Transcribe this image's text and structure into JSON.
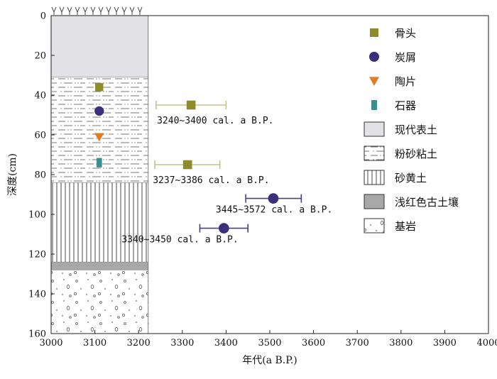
{
  "chart_data": {
    "type": "scatter",
    "xlabel": "年代(a B.P.)",
    "ylabel": "深度(cm)",
    "xlim": [
      3000,
      4000
    ],
    "ylim": [
      0,
      160
    ],
    "y_inverted": true,
    "x_ticks": [
      "3000",
      "3100",
      "3200",
      "3300",
      "3400",
      "3500",
      "3600",
      "3700",
      "3800",
      "3900",
      "4000"
    ],
    "y_ticks": [
      "0",
      "20",
      "40",
      "60",
      "80",
      "100",
      "120",
      "140",
      "160"
    ],
    "grid": false,
    "legend_position": "right",
    "colors": {
      "bone": "#8c8c2a",
      "charcoal": "#3a2f7a",
      "pottery": "#e07b26",
      "stone_tool": "#3a8f8f",
      "errorbar_bone": "#c2c48a",
      "errorbar_charcoal": "#4a3f8a"
    },
    "series": [
      {
        "name": "骨头",
        "marker": "square",
        "points": [
          {
            "x": 3320,
            "y": 45,
            "x_err": [
              3240,
              3400
            ],
            "label": "3240~3400 cal. a B.P."
          },
          {
            "x": 3312,
            "y": 75,
            "x_err": [
              3237,
              3386
            ],
            "label": "3237~3386 cal. a B.P."
          },
          {
            "x": 3110,
            "y": 36
          }
        ]
      },
      {
        "name": "炭屑",
        "marker": "circle",
        "points": [
          {
            "x": 3508,
            "y": 92,
            "x_err": [
              3445,
              3572
            ],
            "label": "3445~3572 cal. a B.P."
          },
          {
            "x": 3395,
            "y": 107,
            "x_err": [
              3340,
              3450
            ],
            "label": "3340~3450 cal. a B.P."
          },
          {
            "x": 3110,
            "y": 48
          }
        ]
      },
      {
        "name": "陶片",
        "marker": "triangle-down",
        "points": [
          {
            "x": 3110,
            "y": 61
          }
        ]
      },
      {
        "name": "石器",
        "marker": "rect",
        "points": [
          {
            "x": 3110,
            "y": 74
          }
        ]
      }
    ],
    "strata": [
      {
        "name": "现代表土",
        "top": 0,
        "bottom": 31,
        "pattern": "topsoil"
      },
      {
        "name": "粉砂粘土",
        "top": 31,
        "bottom": 84,
        "pattern": "silty-clay"
      },
      {
        "name": "砂黄土",
        "top": 84,
        "bottom": 124,
        "pattern": "sandy-loess"
      },
      {
        "name": "浅红色古土壤",
        "top": 124,
        "bottom": 128,
        "pattern": "paleosol"
      },
      {
        "name": "基岩",
        "top": 128,
        "bottom": 160,
        "pattern": "bedrock"
      }
    ],
    "strata_x_range": [
      3000,
      3222
    ]
  }
}
